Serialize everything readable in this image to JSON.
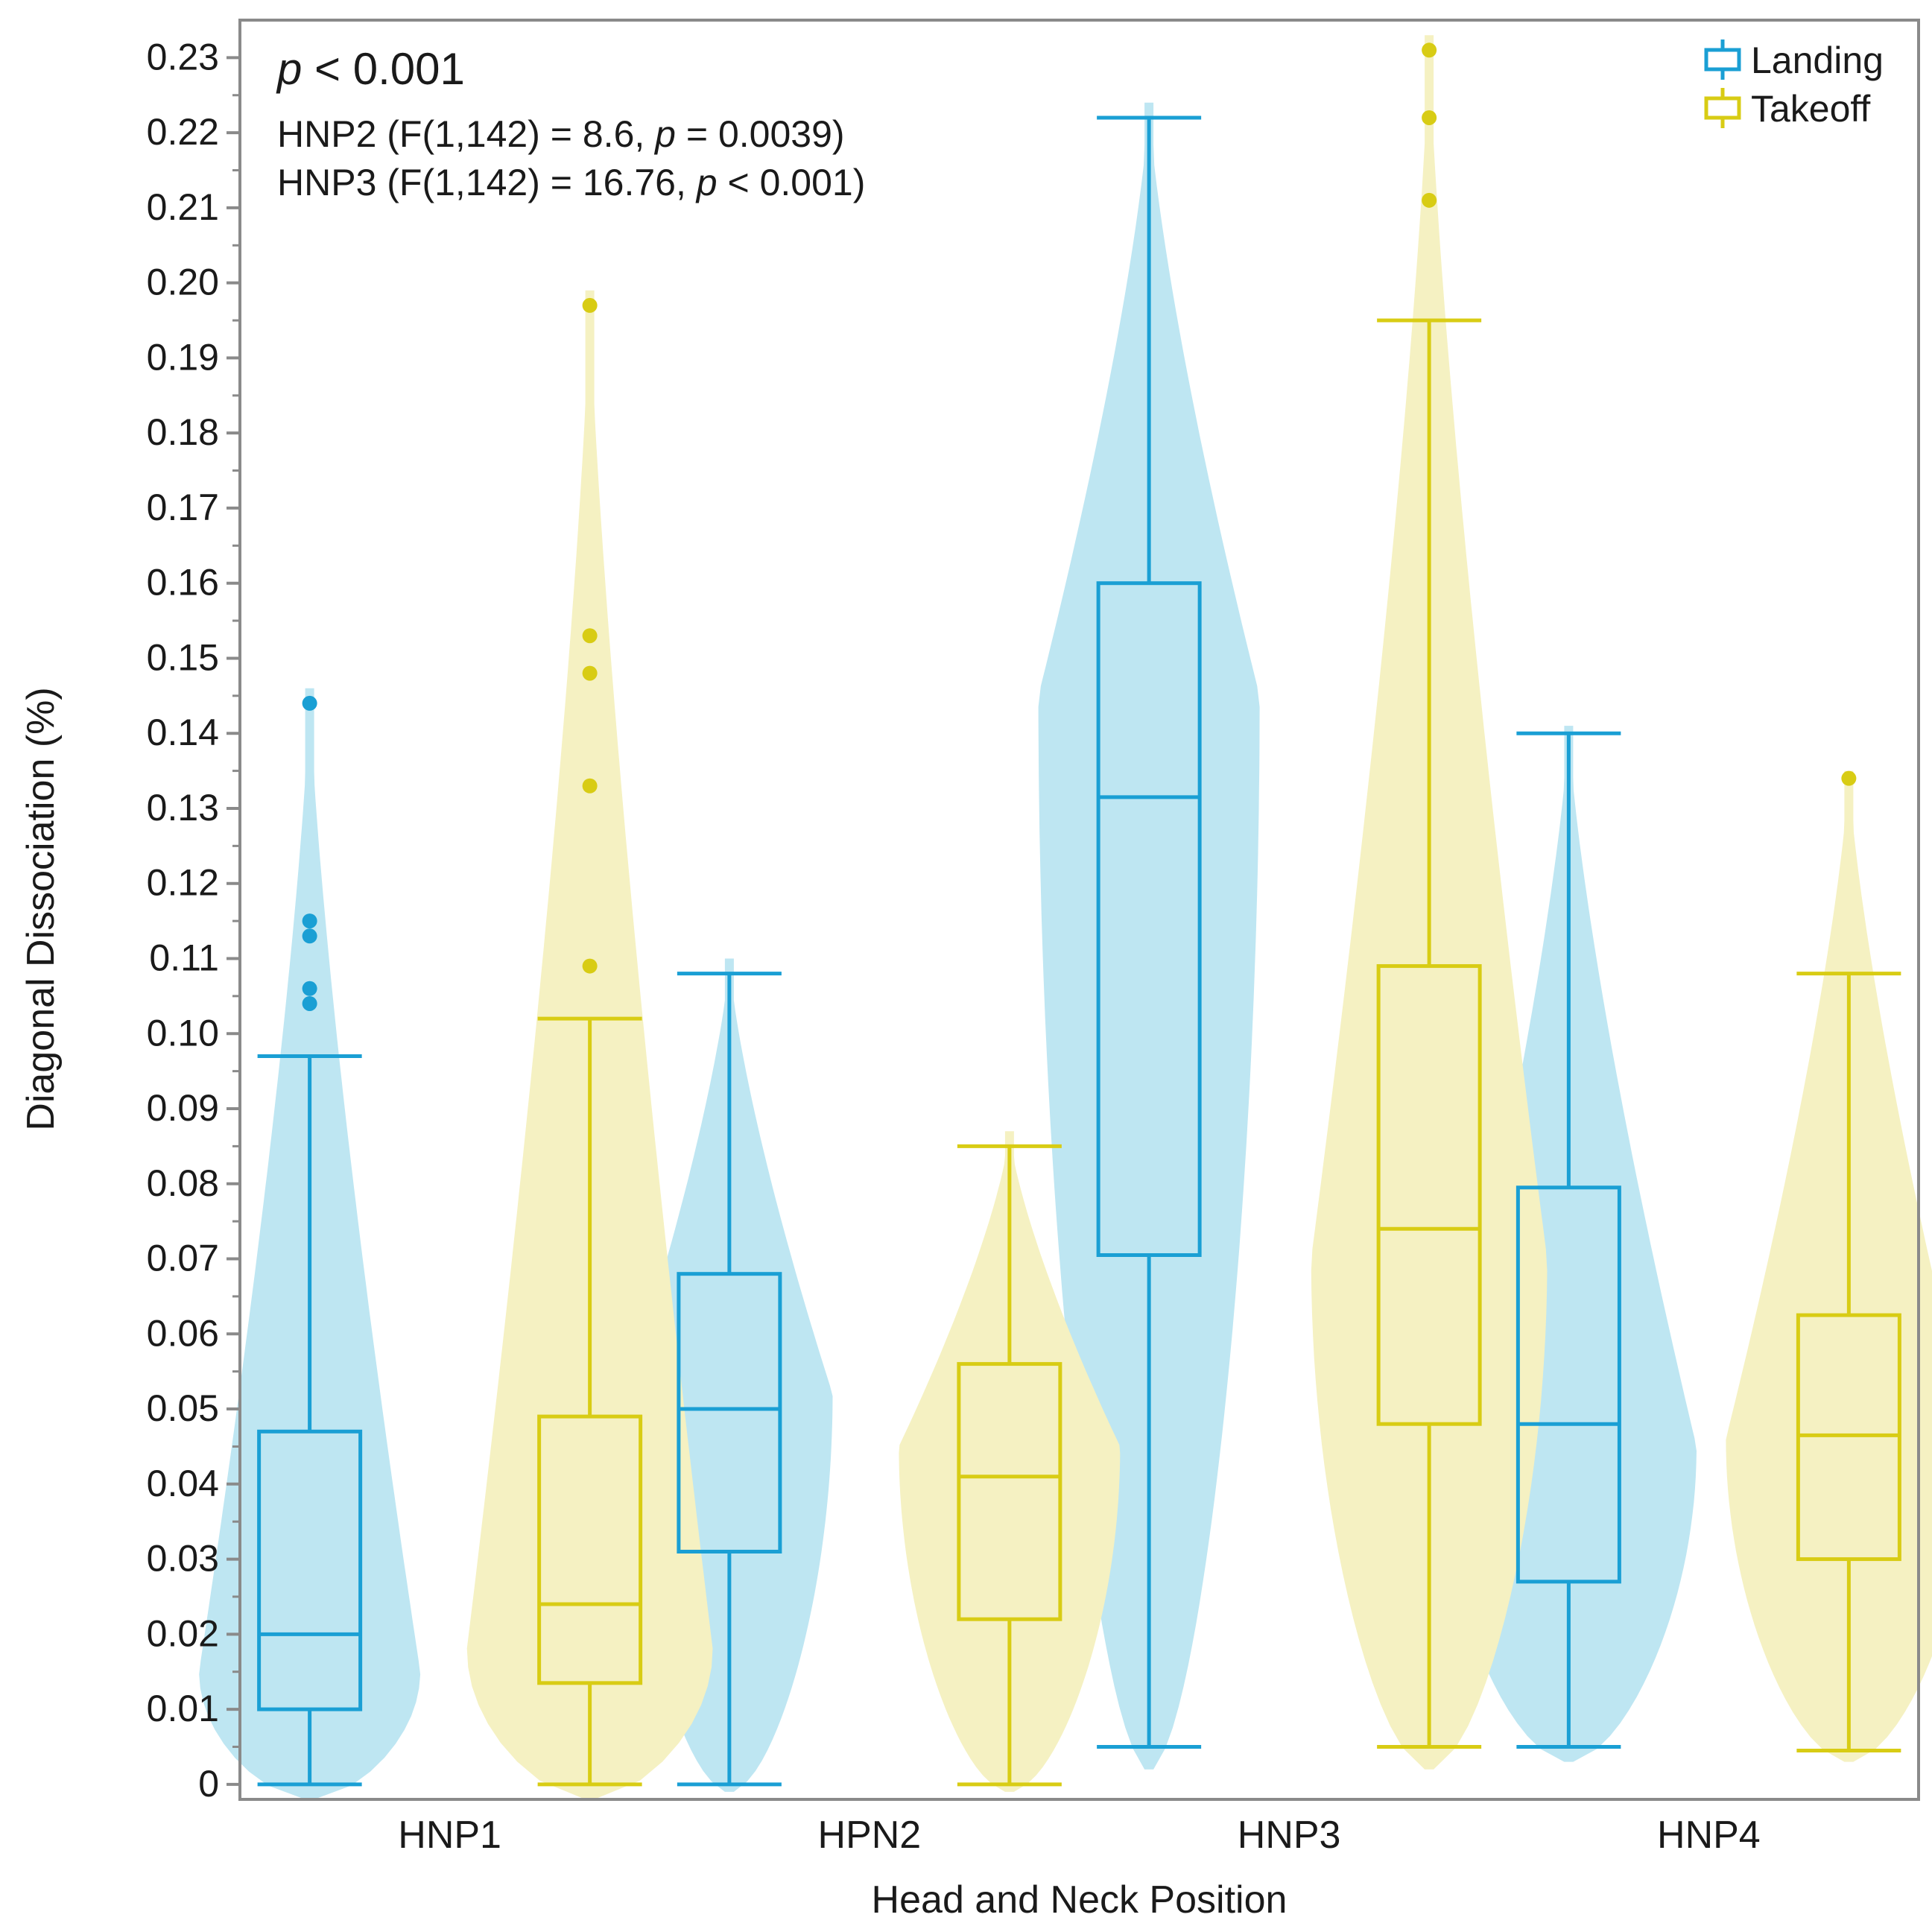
{
  "chart_data": {
    "type": "violin-box",
    "xlabel": "Head and Neck Position",
    "ylabel": "Diagonal Dissociation (%)",
    "ylim": [
      -0.002,
      0.235
    ],
    "yticks": [
      "0",
      "0.01",
      "0.02",
      "0.03",
      "0.04",
      "0.05",
      "0.06",
      "0.07",
      "0.08",
      "0.09",
      "0.10",
      "0.11",
      "0.12",
      "0.13",
      "0.14",
      "0.15",
      "0.16",
      "0.17",
      "0.18",
      "0.19",
      "0.20",
      "0.21",
      "0.22",
      "0.23"
    ],
    "categories": [
      "HNP1",
      "HPN2",
      "HNP3",
      "HNP4"
    ],
    "legend": {
      "position": "top-right"
    },
    "annotations": {
      "main_prefix": "p",
      "main_rest": " < 0.001",
      "line2": {
        "pre": "HNP2 (F(1,142) = 8.6, ",
        "p": "p",
        "post": " = 0.0039)"
      },
      "line3": {
        "pre": "HNP3 (F(1,142) = 16.76, ",
        "p": "p",
        "post": " < 0.001)"
      }
    },
    "series": [
      {
        "name": "Landing",
        "color": "#1a9fd4",
        "fill": "#bee6f2",
        "boxes": [
          {
            "category": "HNP1",
            "whisker_low": 0.0,
            "q1": 0.01,
            "median": 0.02,
            "q3": 0.047,
            "whisker_high": 0.097,
            "outliers": [
              0.104,
              0.106,
              0.113,
              0.115,
              0.144
            ],
            "violin": {
              "min": -0.002,
              "max": 0.146,
              "peak": 0.015,
              "peak_half_width": 0.45
            }
          },
          {
            "category": "HPN2",
            "whisker_low": 0.0,
            "q1": 0.031,
            "median": 0.05,
            "q3": 0.068,
            "whisker_high": 0.108,
            "outliers": [],
            "violin": {
              "min": -0.001,
              "max": 0.11,
              "peak": 0.052,
              "peak_half_width": 0.42
            }
          },
          {
            "category": "HNP3",
            "whisker_low": 0.005,
            "q1": 0.0705,
            "median": 0.1315,
            "q3": 0.16,
            "whisker_high": 0.222,
            "outliers": [],
            "violin": {
              "min": 0.002,
              "max": 0.224,
              "peak": 0.145,
              "peak_half_width": 0.45
            }
          },
          {
            "category": "HNP4",
            "whisker_low": 0.005,
            "q1": 0.027,
            "median": 0.048,
            "q3": 0.0795,
            "whisker_high": 0.14,
            "outliers": [],
            "violin": {
              "min": 0.003,
              "max": 0.141,
              "peak": 0.045,
              "peak_half_width": 0.52
            }
          }
        ]
      },
      {
        "name": "Takeoff",
        "color": "#d8cc14",
        "fill": "#f5f1c2",
        "boxes": [
          {
            "category": "HNP1",
            "whisker_low": 0.0,
            "q1": 0.0135,
            "median": 0.024,
            "q3": 0.049,
            "whisker_high": 0.102,
            "outliers": [
              0.109,
              0.133,
              0.148,
              0.153,
              0.197
            ],
            "violin": {
              "min": -0.002,
              "max": 0.199,
              "peak": 0.018,
              "peak_half_width": 0.5
            }
          },
          {
            "category": "HPN2",
            "whisker_low": 0.0,
            "q1": 0.022,
            "median": 0.041,
            "q3": 0.056,
            "whisker_high": 0.085,
            "outliers": [],
            "violin": {
              "min": -0.001,
              "max": 0.087,
              "peak": 0.045,
              "peak_half_width": 0.45
            }
          },
          {
            "category": "HNP3",
            "whisker_low": 0.005,
            "q1": 0.048,
            "median": 0.074,
            "q3": 0.109,
            "whisker_high": 0.195,
            "outliers": [
              0.211,
              0.222,
              0.231
            ],
            "violin": {
              "min": 0.002,
              "max": 0.233,
              "peak": 0.07,
              "peak_half_width": 0.48
            }
          },
          {
            "category": "HNP4",
            "whisker_low": 0.0045,
            "q1": 0.03,
            "median": 0.0465,
            "q3": 0.0625,
            "whisker_high": 0.108,
            "outliers": [
              0.134
            ],
            "violin": {
              "min": 0.003,
              "max": 0.135,
              "peak": 0.046,
              "peak_half_width": 0.5
            }
          }
        ]
      }
    ]
  }
}
